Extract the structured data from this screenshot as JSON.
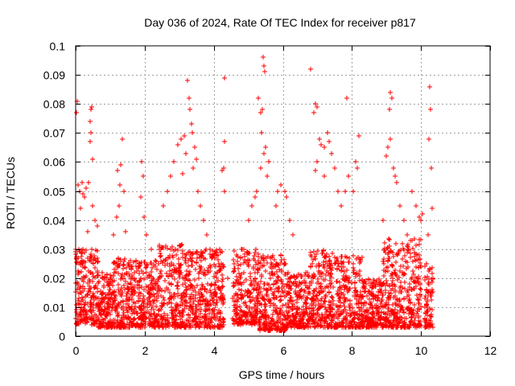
{
  "chart_data": {
    "type": "scatter",
    "title": "Day 036 of 2024, Rate Of TEC Index for receiver p817",
    "xlabel": "GPS time / hours",
    "ylabel": "ROTI / TECUs",
    "xlim": [
      0,
      12
    ],
    "ylim": [
      0,
      0.1
    ],
    "xticks": [
      0,
      2,
      4,
      6,
      8,
      10,
      12
    ],
    "yticks": [
      0,
      0.01,
      0.02,
      0.03,
      0.04,
      0.05,
      0.06,
      0.07,
      0.08,
      0.09,
      0.1
    ],
    "xtick_labels": [
      "0",
      "2",
      "4",
      "6",
      "8",
      "10",
      "12"
    ],
    "ytick_labels": [
      "0",
      "0.01",
      "0.02",
      "0.03",
      "0.04",
      "0.05",
      "0.06",
      "0.07",
      "0.08",
      "0.09",
      "0.1"
    ],
    "grid": true,
    "marker": "+",
    "color": "#ff0000",
    "series": [
      {
        "name": "ROTI",
        "points": [
          [
            0.02,
            0.077
          ],
          [
            0.05,
            0.081
          ],
          [
            0.08,
            0.052
          ],
          [
            0.12,
            0.05
          ],
          [
            0.18,
            0.053
          ],
          [
            0.25,
            0.048
          ],
          [
            0.3,
            0.051
          ],
          [
            0.38,
            0.053
          ],
          [
            0.42,
            0.067
          ],
          [
            0.45,
            0.078
          ],
          [
            0.46,
            0.079
          ],
          [
            0.44,
            0.07
          ],
          [
            0.48,
            0.061
          ],
          [
            0.43,
            0.074
          ],
          [
            0.5,
            0.045
          ],
          [
            0.15,
            0.044
          ],
          [
            0.2,
            0.049
          ],
          [
            0.1,
            0.03
          ],
          [
            0.22,
            0.025
          ],
          [
            0.35,
            0.036
          ],
          [
            0.55,
            0.04
          ],
          [
            0.62,
            0.038
          ],
          [
            1.22,
            0.057
          ],
          [
            1.3,
            0.059
          ],
          [
            1.35,
            0.068
          ],
          [
            1.28,
            0.052
          ],
          [
            1.25,
            0.045
          ],
          [
            1.18,
            0.041
          ],
          [
            1.4,
            0.05
          ],
          [
            1.45,
            0.036
          ],
          [
            1.1,
            0.035
          ],
          [
            1.9,
            0.06
          ],
          [
            1.95,
            0.055
          ],
          [
            1.88,
            0.048
          ],
          [
            2.05,
            0.035
          ],
          [
            1.98,
            0.041
          ],
          [
            2.2,
            0.03
          ],
          [
            2.3,
            0.026
          ],
          [
            2.55,
            0.045
          ],
          [
            2.65,
            0.05
          ],
          [
            2.75,
            0.055
          ],
          [
            2.85,
            0.06
          ],
          [
            2.95,
            0.066
          ],
          [
            3.05,
            0.068
          ],
          [
            3.15,
            0.069
          ],
          [
            3.25,
            0.088
          ],
          [
            3.28,
            0.082
          ],
          [
            3.3,
            0.078
          ],
          [
            3.35,
            0.073
          ],
          [
            3.38,
            0.07
          ],
          [
            3.45,
            0.065
          ],
          [
            3.5,
            0.061
          ],
          [
            3.2,
            0.063
          ],
          [
            3.1,
            0.056
          ],
          [
            3.4,
            0.058
          ],
          [
            3.55,
            0.05
          ],
          [
            3.6,
            0.045
          ],
          [
            3.7,
            0.04
          ],
          [
            3.8,
            0.035
          ],
          [
            3.9,
            0.03
          ],
          [
            4.25,
            0.057
          ],
          [
            4.28,
            0.058
          ],
          [
            4.3,
            0.05
          ],
          [
            4.3,
            0.089
          ],
          [
            4.32,
            0.067
          ],
          [
            4.4,
            0.02
          ],
          [
            4.6,
            0.025
          ],
          [
            4.8,
            0.03
          ],
          [
            5.0,
            0.04
          ],
          [
            5.1,
            0.045
          ],
          [
            5.2,
            0.048
          ],
          [
            5.3,
            0.082
          ],
          [
            5.35,
            0.077
          ],
          [
            5.42,
            0.096
          ],
          [
            5.45,
            0.093
          ],
          [
            5.48,
            0.091
          ],
          [
            5.4,
            0.078
          ],
          [
            5.38,
            0.07
          ],
          [
            5.5,
            0.065
          ],
          [
            5.45,
            0.063
          ],
          [
            5.35,
            0.058
          ],
          [
            5.55,
            0.055
          ],
          [
            5.6,
            0.06
          ],
          [
            5.25,
            0.05
          ],
          [
            5.8,
            0.045
          ],
          [
            5.85,
            0.05
          ],
          [
            5.95,
            0.052
          ],
          [
            6.05,
            0.05
          ],
          [
            6.1,
            0.048
          ],
          [
            6.2,
            0.04
          ],
          [
            6.3,
            0.035
          ],
          [
            6.8,
            0.092
          ],
          [
            6.9,
            0.077
          ],
          [
            6.95,
            0.08
          ],
          [
            7.0,
            0.079
          ],
          [
            7.05,
            0.068
          ],
          [
            7.1,
            0.066
          ],
          [
            7.2,
            0.065
          ],
          [
            7.3,
            0.07
          ],
          [
            7.35,
            0.067
          ],
          [
            7.4,
            0.063
          ],
          [
            7.5,
            0.058
          ],
          [
            7.2,
            0.055
          ],
          [
            7.0,
            0.06
          ],
          [
            6.95,
            0.057
          ],
          [
            7.6,
            0.05
          ],
          [
            7.7,
            0.045
          ],
          [
            7.8,
            0.05
          ],
          [
            7.9,
            0.055
          ],
          [
            7.85,
            0.082
          ],
          [
            8.1,
            0.06
          ],
          [
            8.15,
            0.058
          ],
          [
            8.2,
            0.069
          ],
          [
            8.05,
            0.05
          ],
          [
            8.9,
            0.04
          ],
          [
            9.0,
            0.062
          ],
          [
            9.05,
            0.065
          ],
          [
            9.1,
            0.068
          ],
          [
            9.12,
            0.084
          ],
          [
            9.15,
            0.082
          ],
          [
            9.08,
            0.078
          ],
          [
            9.2,
            0.058
          ],
          [
            9.25,
            0.055
          ],
          [
            9.3,
            0.053
          ],
          [
            9.4,
            0.045
          ],
          [
            9.5,
            0.04
          ],
          [
            9.6,
            0.035
          ],
          [
            9.75,
            0.05
          ],
          [
            9.85,
            0.045
          ],
          [
            9.95,
            0.041
          ],
          [
            10.0,
            0.04
          ],
          [
            10.05,
            0.042
          ],
          [
            10.25,
            0.086
          ],
          [
            10.28,
            0.078
          ],
          [
            10.22,
            0.068
          ],
          [
            10.3,
            0.058
          ],
          [
            10.32,
            0.044
          ],
          [
            10.2,
            0.035
          ]
        ]
      }
    ],
    "dense_band": [
      {
        "x_start": 0.0,
        "x_end": 0.65,
        "y_min": 0.004,
        "y_max": 0.03
      },
      {
        "x_start": 0.65,
        "x_end": 1.1,
        "y_min": 0.003,
        "y_max": 0.022
      },
      {
        "x_start": 1.1,
        "x_end": 1.6,
        "y_min": 0.003,
        "y_max": 0.028
      },
      {
        "x_start": 1.6,
        "x_end": 2.4,
        "y_min": 0.003,
        "y_max": 0.026
      },
      {
        "x_start": 2.4,
        "x_end": 3.2,
        "y_min": 0.003,
        "y_max": 0.032
      },
      {
        "x_start": 3.2,
        "x_end": 4.3,
        "y_min": 0.003,
        "y_max": 0.03
      },
      {
        "x_start": 4.55,
        "x_end": 5.3,
        "y_min": 0.004,
        "y_max": 0.03
      },
      {
        "x_start": 5.3,
        "x_end": 6.1,
        "y_min": 0.002,
        "y_max": 0.028
      },
      {
        "x_start": 6.1,
        "x_end": 6.8,
        "y_min": 0.003,
        "y_max": 0.022
      },
      {
        "x_start": 6.8,
        "x_end": 7.6,
        "y_min": 0.003,
        "y_max": 0.03
      },
      {
        "x_start": 7.6,
        "x_end": 8.3,
        "y_min": 0.003,
        "y_max": 0.028
      },
      {
        "x_start": 8.3,
        "x_end": 8.9,
        "y_min": 0.003,
        "y_max": 0.02
      },
      {
        "x_start": 8.9,
        "x_end": 10.0,
        "y_min": 0.003,
        "y_max": 0.034
      },
      {
        "x_start": 10.1,
        "x_end": 10.35,
        "y_min": 0.003,
        "y_max": 0.025
      }
    ]
  }
}
